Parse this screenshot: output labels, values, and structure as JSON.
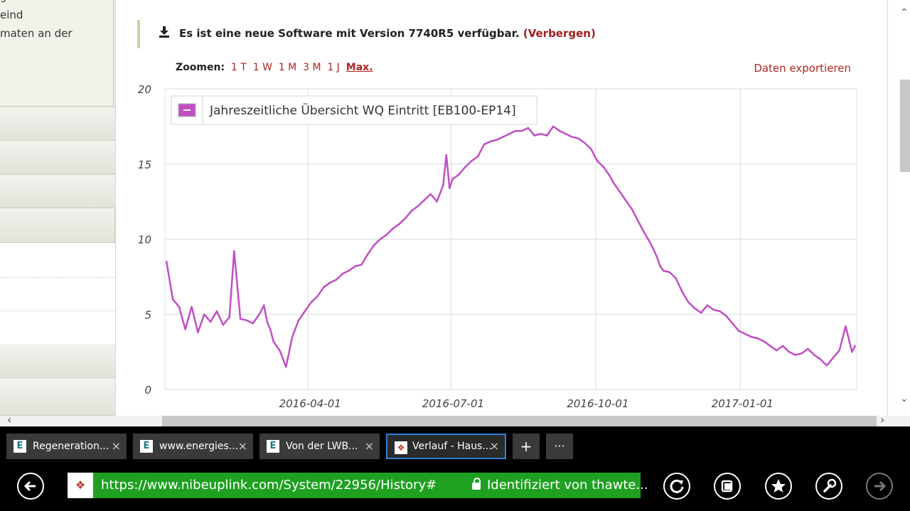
{
  "sidebar": {
    "lines": [
      "g",
      "eind",
      "maten an der"
    ]
  },
  "notice": {
    "text": "Es ist eine neue Software mit Version 7740R5 verfügbar.",
    "hide_label": "(Verbergen)"
  },
  "zoom": {
    "label": "Zoomen:",
    "options": [
      "1 T",
      "1 W",
      "1 M",
      "3 M",
      "1 J",
      "Max."
    ],
    "selected": "Max."
  },
  "export_label": "Daten exportieren",
  "chart_data": {
    "type": "line",
    "title": "",
    "series": [
      {
        "name": "Jahreszeitliche Übersicht WQ Eintritt [EB100-EP14]",
        "color": "#c04fc4",
        "x": [
          "2016-01-02",
          "2016-01-06",
          "2016-01-10",
          "2016-01-14",
          "2016-01-18",
          "2016-01-22",
          "2016-01-26",
          "2016-01-30",
          "2016-02-03",
          "2016-02-07",
          "2016-02-11",
          "2016-02-14",
          "2016-02-18",
          "2016-02-22",
          "2016-02-26",
          "2016-03-01",
          "2016-03-04",
          "2016-03-06",
          "2016-03-08",
          "2016-03-10",
          "2016-03-14",
          "2016-03-18",
          "2016-03-22",
          "2016-03-26",
          "2016-03-30",
          "2016-04-03",
          "2016-04-07",
          "2016-04-11",
          "2016-04-15",
          "2016-04-19",
          "2016-04-23",
          "2016-04-27",
          "2016-05-01",
          "2016-05-05",
          "2016-05-09",
          "2016-05-13",
          "2016-05-17",
          "2016-05-21",
          "2016-05-25",
          "2016-05-29",
          "2016-06-02",
          "2016-06-06",
          "2016-06-10",
          "2016-06-14",
          "2016-06-18",
          "2016-06-22",
          "2016-06-26",
          "2016-06-28",
          "2016-06-30",
          "2016-07-02",
          "2016-07-06",
          "2016-07-10",
          "2016-07-14",
          "2016-07-18",
          "2016-07-22",
          "2016-07-26",
          "2016-07-30",
          "2016-08-03",
          "2016-08-07",
          "2016-08-11",
          "2016-08-15",
          "2016-08-19",
          "2016-08-23",
          "2016-08-27",
          "2016-08-31",
          "2016-09-04",
          "2016-09-08",
          "2016-09-12",
          "2016-09-16",
          "2016-09-20",
          "2016-09-24",
          "2016-09-28",
          "2016-10-02",
          "2016-10-06",
          "2016-10-08",
          "2016-10-10",
          "2016-10-12",
          "2016-10-16",
          "2016-10-20",
          "2016-10-24",
          "2016-10-28",
          "2016-11-01",
          "2016-11-05",
          "2016-11-09",
          "2016-11-11",
          "2016-11-13",
          "2016-11-17",
          "2016-11-21",
          "2016-11-25",
          "2016-11-29",
          "2016-12-03",
          "2016-12-07",
          "2016-12-11",
          "2016-12-15",
          "2016-12-19",
          "2016-12-23",
          "2016-12-27",
          "2016-12-31",
          "2017-01-04",
          "2017-01-08",
          "2017-01-12",
          "2017-01-16",
          "2017-01-20",
          "2017-01-24",
          "2017-01-28",
          "2017-02-01",
          "2017-02-05",
          "2017-02-09",
          "2017-02-13",
          "2017-02-17",
          "2017-02-21",
          "2017-02-25",
          "2017-03-01",
          "2017-03-05",
          "2017-03-09",
          "2017-03-13",
          "2017-03-15"
        ],
        "values": [
          8.5,
          6.0,
          5.5,
          4.0,
          5.5,
          3.8,
          5.0,
          4.5,
          5.2,
          4.3,
          4.8,
          9.2,
          4.7,
          4.6,
          4.4,
          5.0,
          5.6,
          4.5,
          4.0,
          3.2,
          2.6,
          1.5,
          3.5,
          4.6,
          5.2,
          5.8,
          6.2,
          6.8,
          7.1,
          7.3,
          7.7,
          7.9,
          8.2,
          8.3,
          9.0,
          9.6,
          10.0,
          10.3,
          10.7,
          11.0,
          11.4,
          11.9,
          12.2,
          12.6,
          13.0,
          12.5,
          13.6,
          15.6,
          13.4,
          14.0,
          14.3,
          14.8,
          15.2,
          15.5,
          16.3,
          16.5,
          16.6,
          16.8,
          17.0,
          17.2,
          17.2,
          17.4,
          16.9,
          17.0,
          16.9,
          17.5,
          17.2,
          17.0,
          16.8,
          16.7,
          16.4,
          16.0,
          15.2,
          14.8,
          14.5,
          14.2,
          13.8,
          13.2,
          12.6,
          12.0,
          11.2,
          10.4,
          9.7,
          8.8,
          8.2,
          7.9,
          7.8,
          7.4,
          6.5,
          5.8,
          5.4,
          5.1,
          5.6,
          5.3,
          5.2,
          4.9,
          4.4,
          3.9,
          3.7,
          3.5,
          3.4,
          3.2,
          2.9,
          2.6,
          2.9,
          2.5,
          2.3,
          2.4,
          2.7,
          2.3,
          2.0,
          1.6,
          2.1,
          2.6,
          4.2,
          2.5,
          2.9
        ]
      }
    ],
    "xticks": [
      "2016-04-01",
      "2016-07-01",
      "2016-10-01",
      "2017-01-01"
    ],
    "xlim": [
      "2016-01-01",
      "2017-03-16"
    ],
    "yticks": [
      0,
      5,
      10,
      15,
      20
    ],
    "ylim": [
      0,
      20
    ],
    "xlabel": "",
    "ylabel": "",
    "grid": true,
    "legend": "top-left"
  },
  "tabs": [
    {
      "label": "Regeneration...",
      "icon": "E",
      "active": false
    },
    {
      "label": "www.energies...",
      "icon": "E",
      "active": false
    },
    {
      "label": "Von der LWB...",
      "icon": "E",
      "active": false
    },
    {
      "label": "Verlauf - Haus...",
      "icon": "nibe",
      "active": true
    }
  ],
  "tab_close": "×",
  "new_tab": "+",
  "more_tabs": "···",
  "address": {
    "url": "https://www.nibeuplink.com/System/22956/History#",
    "cert": "Identifiziert von thawte..."
  },
  "colors": {
    "accent_red": "#b02525",
    "url_green": "#1fa021",
    "series": "#c04fc4"
  },
  "icons": {
    "back": "back-icon",
    "refresh": "refresh-icon",
    "tabs": "tabs-icon",
    "favorite": "favorite-icon",
    "tools": "tools-icon",
    "forward": "forward-icon"
  }
}
